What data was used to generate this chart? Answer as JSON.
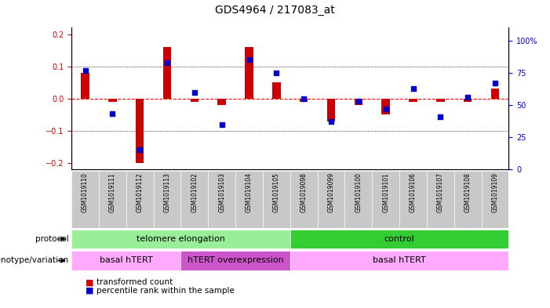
{
  "title": "GDS4964 / 217083_at",
  "samples": [
    "GSM1019110",
    "GSM1019111",
    "GSM1019112",
    "GSM1019113",
    "GSM1019102",
    "GSM1019103",
    "GSM1019104",
    "GSM1019105",
    "GSM1019098",
    "GSM1019099",
    "GSM1019100",
    "GSM1019101",
    "GSM1019106",
    "GSM1019107",
    "GSM1019108",
    "GSM1019109"
  ],
  "transformed_count": [
    0.08,
    -0.01,
    -0.2,
    0.16,
    -0.01,
    -0.02,
    0.16,
    0.05,
    -0.01,
    -0.07,
    -0.02,
    -0.05,
    -0.01,
    -0.01,
    -0.01,
    0.03
  ],
  "percentile_rank": [
    72,
    38,
    10,
    78,
    55,
    30,
    80,
    70,
    50,
    32,
    48,
    42,
    58,
    36,
    51,
    62
  ],
  "ylim_left": [
    -0.22,
    0.22
  ],
  "ylim_right": [
    0,
    110
  ],
  "yticks_left": [
    -0.2,
    -0.1,
    0.0,
    0.1,
    0.2
  ],
  "yticks_right": [
    0,
    25,
    50,
    75,
    100
  ],
  "ytick_labels_right": [
    "0",
    "25",
    "50",
    "75",
    "100%"
  ],
  "protocol_groups": [
    {
      "label": "telomere elongation",
      "start": 0,
      "end": 8,
      "color": "#99EE99"
    },
    {
      "label": "control",
      "start": 8,
      "end": 16,
      "color": "#33CC33"
    }
  ],
  "genotype_groups": [
    {
      "label": "basal hTERT",
      "start": 0,
      "end": 4,
      "color": "#FFAAFF"
    },
    {
      "label": "hTERT overexpression",
      "start": 4,
      "end": 8,
      "color": "#CC55CC"
    },
    {
      "label": "basal hTERT",
      "start": 8,
      "end": 16,
      "color": "#FFAAFF"
    }
  ],
  "bar_color": "#CC0000",
  "dot_color": "#0000CC",
  "zero_line_color": "#FF0000",
  "bg_color": "#FFFFFF",
  "label_color_left": "#CC0000",
  "label_color_right": "#0000CC",
  "title_fontsize": 10,
  "tick_fontsize": 7,
  "bar_width": 0.3,
  "dot_size": 22
}
